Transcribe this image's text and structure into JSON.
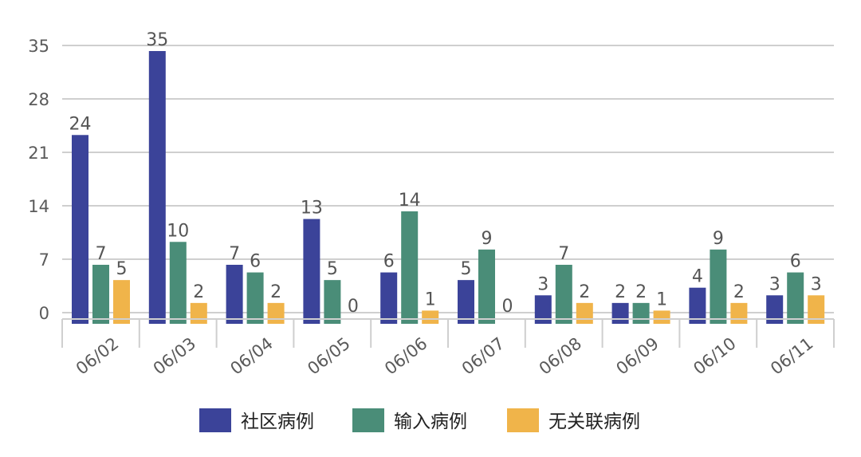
{
  "chart_data": {
    "type": "bar",
    "title": "",
    "xlabel": "",
    "ylabel": "",
    "categories": [
      "06/02",
      "06/03",
      "06/04",
      "06/05",
      "06/06",
      "06/07",
      "06/08",
      "06/09",
      "06/10",
      "06/11"
    ],
    "y_ticks": [
      "0",
      "7",
      "14",
      "21",
      "28",
      "35"
    ],
    "ylim": [
      0,
      35
    ],
    "grid": true,
    "legend_position": "bottom",
    "series": [
      {
        "name": "社区病例",
        "color": "#3b4399",
        "values": [
          24,
          35,
          7,
          13,
          6,
          5,
          3,
          2,
          4,
          3
        ]
      },
      {
        "name": "输入病例",
        "color": "#4a8d78",
        "values": [
          7,
          10,
          6,
          5,
          14,
          9,
          7,
          2,
          9,
          6
        ]
      },
      {
        "name": "无关联病例",
        "color": "#f0b44a",
        "values": [
          5,
          2,
          2,
          0,
          1,
          0,
          2,
          1,
          2,
          3
        ]
      }
    ]
  }
}
